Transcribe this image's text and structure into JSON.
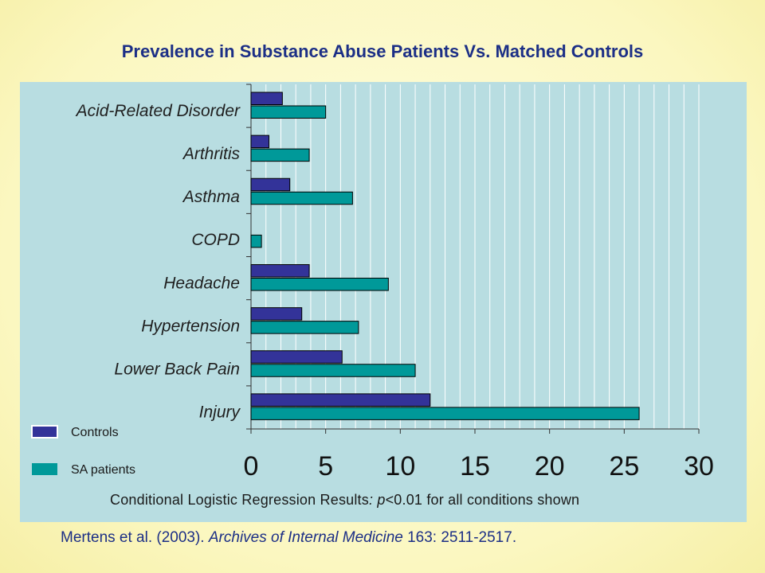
{
  "title": "Prevalence in Substance Abuse Patients Vs. Matched Controls",
  "chart_data": {
    "type": "bar",
    "orientation": "horizontal",
    "title": "Prevalence in Substance Abuse Patients Vs. Matched Controls",
    "categories": [
      "Acid-Related Disorder",
      "Arthritis",
      "Asthma",
      "COPD",
      "Headache",
      "Hypertension",
      "Lower Back Pain",
      "Injury"
    ],
    "series": [
      {
        "name": "Controls",
        "color": "#333399",
        "values": [
          2.1,
          1.2,
          2.6,
          0.0,
          3.9,
          3.4,
          6.1,
          12.0
        ]
      },
      {
        "name": "SA patients",
        "color": "#009999",
        "values": [
          5.0,
          3.9,
          6.8,
          0.7,
          9.2,
          7.2,
          11.0,
          26.0
        ]
      }
    ],
    "xlim": [
      0,
      30
    ],
    "xticks": [
      "0",
      "5",
      "10",
      "15",
      "20",
      "25",
      "30"
    ],
    "grid": "vertical",
    "legend_position": "bottom-left"
  },
  "footnote": {
    "prefix": "Conditional Logistic Regression Results",
    "colon": ":",
    "p": "p",
    "suffix": "<0.01 for all conditions shown"
  },
  "citation": {
    "authors": "Mertens et al.  (2003). ",
    "journal": "Archives of Internal Medicine",
    "rest": " 163: 2511-2517."
  }
}
